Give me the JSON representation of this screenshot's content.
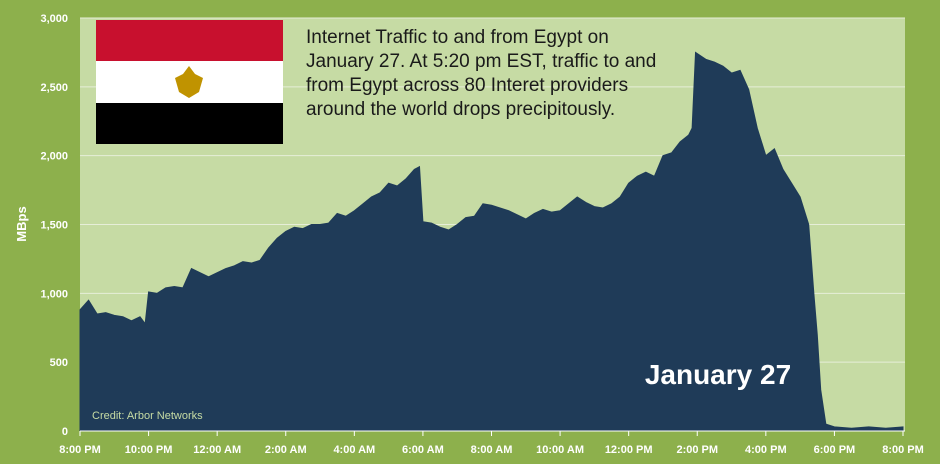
{
  "chart_data": {
    "type": "area",
    "annotation": "Internet Traffic to and from Egypt on January 27. At 5:20 pm EST, traffic to and from Egypt across 80 Interet providers around the world  drops precipitously.",
    "date_label": "January 27",
    "credit": "Credit: Arbor Networks",
    "y_label": "MBps",
    "color": "#1f3b58",
    "grid": true,
    "xlim": [
      0,
      24
    ],
    "xticks": [
      {
        "value": 0,
        "label": "8:00 PM"
      },
      {
        "value": 2,
        "label": "10:00 PM"
      },
      {
        "value": 4,
        "label": "12:00 AM"
      },
      {
        "value": 6,
        "label": "2:00 AM"
      },
      {
        "value": 8,
        "label": "4:00 AM"
      },
      {
        "value": 10,
        "label": "6:00 AM"
      },
      {
        "value": 12,
        "label": "8:00 AM"
      },
      {
        "value": 14,
        "label": "10:00 AM"
      },
      {
        "value": 16,
        "label": "12:00 PM"
      },
      {
        "value": 18,
        "label": "2:00 PM"
      },
      {
        "value": 20,
        "label": "4:00 PM"
      },
      {
        "value": 22,
        "label": "6:00 PM"
      },
      {
        "value": 24,
        "label": "8:00 PM"
      }
    ],
    "ylim": [
      0,
      3000
    ],
    "yticks": [
      0,
      500,
      {
        "value": 1000,
        "label": "1,000"
      },
      {
        "value": 1500,
        "label": "1,500"
      },
      {
        "value": 2000,
        "label": "2,000"
      },
      {
        "value": 2500,
        "label": "2,500"
      },
      {
        "value": 3000,
        "label": "3,000"
      }
    ],
    "x": [
      0,
      0.25,
      0.5,
      0.75,
      1,
      1.25,
      1.5,
      1.75,
      1.9,
      2,
      2.25,
      2.5,
      2.75,
      3,
      3.25,
      3.5,
      3.75,
      4,
      4.25,
      4.5,
      4.75,
      5,
      5.25,
      5.5,
      5.75,
      6,
      6.25,
      6.5,
      6.75,
      7,
      7.25,
      7.5,
      7.75,
      8,
      8.25,
      8.5,
      8.75,
      9,
      9.25,
      9.5,
      9.75,
      9.9,
      10,
      10.25,
      10.5,
      10.75,
      11,
      11.25,
      11.5,
      11.75,
      12,
      12.25,
      12.5,
      12.75,
      13,
      13.25,
      13.5,
      13.75,
      14,
      14.25,
      14.5,
      14.75,
      15,
      15.25,
      15.5,
      15.75,
      16,
      16.25,
      16.5,
      16.75,
      17,
      17.25,
      17.5,
      17.75,
      17.85,
      17.95,
      18.25,
      18.5,
      18.75,
      19,
      19.25,
      19.5,
      19.75,
      20,
      20.25,
      20.5,
      20.75,
      21,
      21.25,
      21.4,
      21.5,
      21.6,
      21.75,
      22,
      22.5,
      23,
      23.5,
      24
    ],
    "values": [
      880,
      950,
      850,
      860,
      840,
      830,
      800,
      830,
      780,
      1010,
      1000,
      1040,
      1050,
      1040,
      1180,
      1150,
      1120,
      1150,
      1180,
      1200,
      1230,
      1220,
      1240,
      1330,
      1400,
      1450,
      1480,
      1470,
      1500,
      1500,
      1510,
      1580,
      1560,
      1600,
      1650,
      1700,
      1730,
      1800,
      1780,
      1830,
      1900,
      1920,
      1520,
      1510,
      1480,
      1460,
      1500,
      1550,
      1560,
      1650,
      1640,
      1620,
      1600,
      1570,
      1540,
      1580,
      1610,
      1590,
      1600,
      1650,
      1700,
      1660,
      1630,
      1620,
      1650,
      1700,
      1800,
      1850,
      1880,
      1850,
      2000,
      2020,
      2100,
      2150,
      2200,
      2750,
      2700,
      2680,
      2650,
      2600,
      2620,
      2480,
      2200,
      2000,
      2050,
      1900,
      1800,
      1700,
      1500,
      1000,
      700,
      300,
      50,
      30,
      20,
      30,
      20,
      30
    ]
  }
}
